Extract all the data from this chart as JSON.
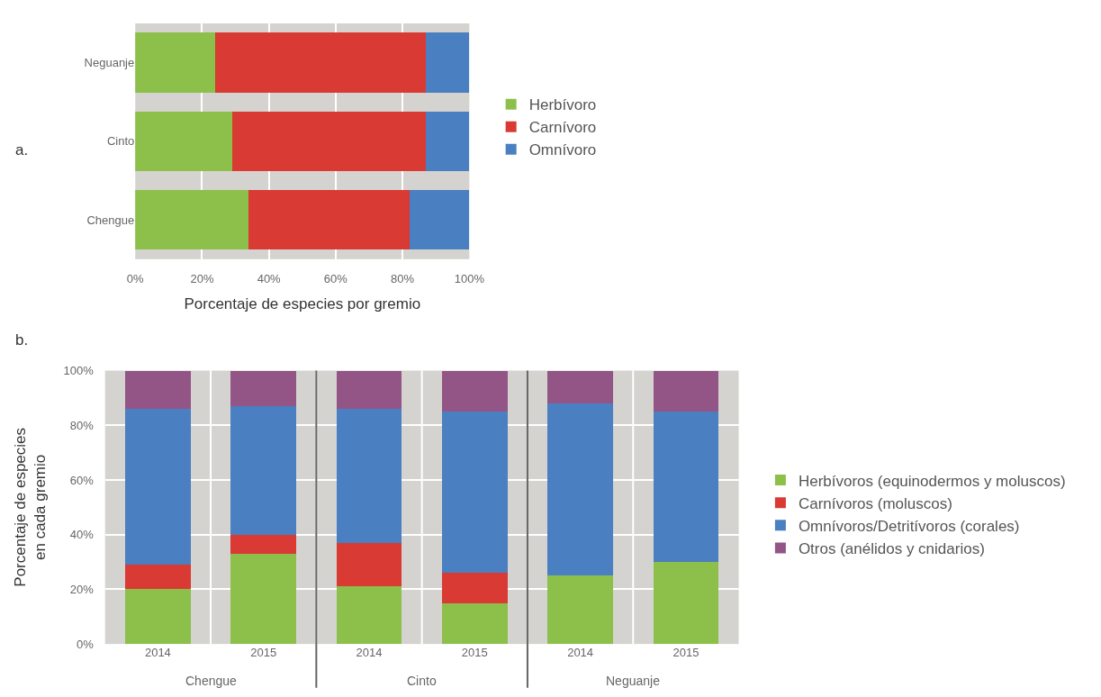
{
  "chart_data": [
    {
      "type": "bar",
      "orientation": "horizontal",
      "stacked": true,
      "annotations": [
        "a."
      ],
      "xlabel": "Porcentaje de especies por gremio",
      "categories": [
        "Neguanje",
        "Cinto",
        "Chengue"
      ],
      "series": [
        {
          "name": "Herbívoro",
          "color": "#8cc04a",
          "values": [
            24,
            29,
            34
          ]
        },
        {
          "name": "Carnívoro",
          "color": "#d93a33",
          "values": [
            63,
            58,
            48
          ]
        },
        {
          "name": "Omnívoro",
          "color": "#4a7fc1",
          "values": [
            13,
            13,
            18
          ]
        }
      ],
      "xlim": [
        0,
        100
      ],
      "xticks": [
        {
          "value": 0,
          "label": "0%"
        },
        {
          "value": 20,
          "label": "20%"
        },
        {
          "value": 40,
          "label": "40%"
        },
        {
          "value": 60,
          "label": "60%"
        },
        {
          "value": 80,
          "label": "80%"
        },
        {
          "value": 100,
          "label": "100%"
        }
      ],
      "grid": "x",
      "legend": "right"
    },
    {
      "type": "bar",
      "stacked": true,
      "annotations": [
        "b.",
        "Chengue",
        "Cinto",
        "Neguanje"
      ],
      "ylabel": "Porcentaje de especies\nen cada gremio",
      "categories": [
        "2014",
        "2015",
        "2014",
        "2015",
        "2014",
        "2015"
      ],
      "series": [
        {
          "name": "Herbívoros (equinodermos y moluscos)",
          "color": "#8cc04a",
          "values": [
            20,
            33,
            21,
            15,
            25,
            30
          ]
        },
        {
          "name": "Carnívoros (moluscos)",
          "color": "#d93a33",
          "values": [
            9,
            7,
            16,
            11,
            0,
            0
          ]
        },
        {
          "name": "Omnívoros/Detritívoros (corales)",
          "color": "#4a7fc1",
          "values": [
            57,
            47,
            49,
            59,
            63,
            55
          ]
        },
        {
          "name": "Otros (anélidos y cnidarios)",
          "color": "#925586",
          "values": [
            14,
            13,
            14,
            15,
            12,
            15
          ]
        }
      ],
      "ylim": [
        0,
        100
      ],
      "yticks": [
        {
          "value": 0,
          "label": "0%"
        },
        {
          "value": 20,
          "label": "20%"
        },
        {
          "value": 40,
          "label": "40%"
        },
        {
          "value": 60,
          "label": "60%"
        },
        {
          "value": 80,
          "label": "80%"
        },
        {
          "value": 100,
          "label": "100%"
        }
      ],
      "grid": true,
      "legend": "right"
    }
  ]
}
